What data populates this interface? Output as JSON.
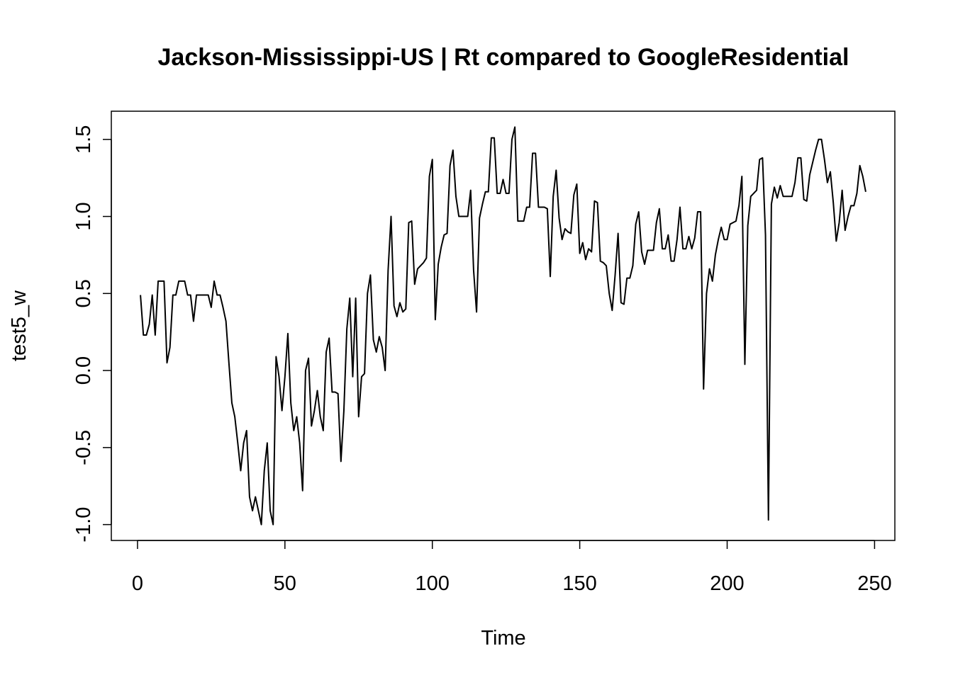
{
  "chart_data": {
    "type": "line",
    "title": "Jackson-Mississippi-US | Rt compared to GoogleResidential",
    "x_label": "Time",
    "y_label": "test5_w",
    "x": [
      1,
      2,
      3,
      4,
      5,
      6,
      7,
      8,
      9,
      10,
      11,
      12,
      13,
      14,
      15,
      16,
      17,
      18,
      19,
      20,
      21,
      22,
      23,
      24,
      25,
      26,
      27,
      28,
      29,
      30,
      31,
      32,
      33,
      34,
      35,
      36,
      37,
      38,
      39,
      40,
      41,
      42,
      43,
      44,
      45,
      46,
      47,
      48,
      49,
      50,
      51,
      52,
      53,
      54,
      55,
      56,
      57,
      58,
      59,
      60,
      61,
      62,
      63,
      64,
      65,
      66,
      67,
      68,
      69,
      70,
      71,
      72,
      73,
      74,
      75,
      76,
      77,
      78,
      79,
      80,
      81,
      82,
      83,
      84,
      85,
      86,
      87,
      88,
      89,
      90,
      91,
      92,
      93,
      94,
      95,
      96,
      97,
      98,
      99,
      100,
      101,
      102,
      103,
      104,
      105,
      106,
      107,
      108,
      109,
      110,
      111,
      112,
      113,
      114,
      115,
      116,
      117,
      118,
      119,
      120,
      121,
      122,
      123,
      124,
      125,
      126,
      127,
      128,
      129,
      130,
      131,
      132,
      133,
      134,
      135,
      136,
      137,
      138,
      139,
      140,
      141,
      142,
      143,
      144,
      145,
      146,
      147,
      148,
      149,
      150,
      151,
      152,
      153,
      154,
      155,
      156,
      157,
      158,
      159,
      160,
      161,
      162,
      163,
      164,
      165,
      166,
      167,
      168,
      169,
      170,
      171,
      172,
      173,
      174,
      175,
      176,
      177,
      178,
      179,
      180,
      181,
      182,
      183,
      184,
      185,
      186,
      187,
      188,
      189,
      190,
      191,
      192,
      193,
      194,
      195,
      196,
      197,
      198,
      199,
      200,
      201,
      202,
      203,
      204,
      205,
      206,
      207,
      208,
      209,
      210,
      211,
      212,
      213,
      214,
      215,
      216,
      217,
      218,
      219,
      220,
      221,
      222,
      223,
      224,
      225,
      226,
      227,
      228,
      229,
      230,
      231,
      232,
      233,
      234,
      235,
      236,
      237,
      238,
      239,
      240,
      241,
      242,
      243,
      244,
      245,
      246,
      247
    ],
    "series": [
      {
        "name": "test5_w",
        "color": "#000000",
        "values": [
          0.49,
          0.23,
          0.23,
          0.3,
          0.49,
          0.23,
          0.58,
          0.58,
          0.58,
          0.05,
          0.15,
          0.49,
          0.49,
          0.58,
          0.58,
          0.58,
          0.49,
          0.49,
          0.32,
          0.49,
          0.49,
          0.49,
          0.49,
          0.49,
          0.41,
          0.58,
          0.49,
          0.49,
          0.41,
          0.32,
          0.05,
          -0.21,
          -0.3,
          -0.47,
          -0.65,
          -0.47,
          -0.39,
          -0.82,
          -0.91,
          -0.82,
          -0.91,
          -1.0,
          -0.65,
          -0.47,
          -0.91,
          -1.0,
          0.09,
          -0.04,
          -0.26,
          -0.04,
          0.24,
          -0.21,
          -0.39,
          -0.3,
          -0.47,
          -0.78,
          0.0,
          0.08,
          -0.36,
          -0.26,
          -0.13,
          -0.3,
          -0.39,
          0.12,
          0.21,
          -0.14,
          -0.14,
          -0.15,
          -0.59,
          -0.26,
          0.27,
          0.47,
          -0.04,
          0.47,
          -0.3,
          -0.04,
          -0.02,
          0.5,
          0.62,
          0.2,
          0.12,
          0.22,
          0.15,
          0.0,
          0.65,
          1.0,
          0.42,
          0.35,
          0.44,
          0.38,
          0.4,
          0.96,
          0.97,
          0.56,
          0.66,
          0.68,
          0.7,
          0.73,
          1.26,
          1.37,
          0.33,
          0.69,
          0.8,
          0.88,
          0.89,
          1.33,
          1.43,
          1.13,
          1.0,
          1.0,
          1.0,
          1.0,
          1.17,
          0.65,
          0.38,
          0.99,
          1.08,
          1.16,
          1.16,
          1.51,
          1.51,
          1.15,
          1.15,
          1.24,
          1.15,
          1.15,
          1.5,
          1.58,
          0.97,
          0.97,
          0.97,
          1.06,
          1.06,
          1.41,
          1.41,
          1.06,
          1.06,
          1.06,
          1.05,
          0.61,
          1.13,
          1.3,
          0.99,
          0.85,
          0.92,
          0.9,
          0.89,
          1.14,
          1.21,
          0.76,
          0.83,
          0.72,
          0.79,
          0.77,
          1.1,
          1.09,
          0.71,
          0.7,
          0.68,
          0.5,
          0.39,
          0.62,
          0.89,
          0.44,
          0.43,
          0.6,
          0.6,
          0.68,
          0.95,
          1.03,
          0.77,
          0.69,
          0.78,
          0.78,
          0.78,
          0.96,
          1.05,
          0.79,
          0.79,
          0.88,
          0.71,
          0.71,
          0.85,
          1.06,
          0.79,
          0.79,
          0.87,
          0.79,
          0.86,
          1.03,
          1.03,
          -0.12,
          0.5,
          0.66,
          0.58,
          0.75,
          0.85,
          0.93,
          0.85,
          0.85,
          0.95,
          0.96,
          0.97,
          1.07,
          1.26,
          0.04,
          0.94,
          1.13,
          1.15,
          1.17,
          1.37,
          1.38,
          0.88,
          -0.97,
          1.08,
          1.19,
          1.12,
          1.2,
          1.13,
          1.13,
          1.13,
          1.13,
          1.22,
          1.38,
          1.38,
          1.11,
          1.1,
          1.27,
          1.35,
          1.43,
          1.5,
          1.5,
          1.37,
          1.22,
          1.29,
          1.09,
          0.84,
          0.96,
          1.17,
          0.91,
          1.0,
          1.07,
          1.07,
          1.15,
          1.33,
          1.26,
          1.16
        ]
      }
    ],
    "xlim": [
      -8.88,
      256.88
    ],
    "xticks": [
      0,
      50,
      100,
      150,
      200,
      250
    ],
    "ylim": [
      -1.103,
      1.683
    ],
    "yticks": [
      {
        "value": -1,
        "label": "-1.0"
      },
      -0.5,
      {
        "value": 0,
        "label": "0.0"
      },
      0.5,
      {
        "value": 1,
        "label": "1.0"
      },
      1.5
    ]
  }
}
